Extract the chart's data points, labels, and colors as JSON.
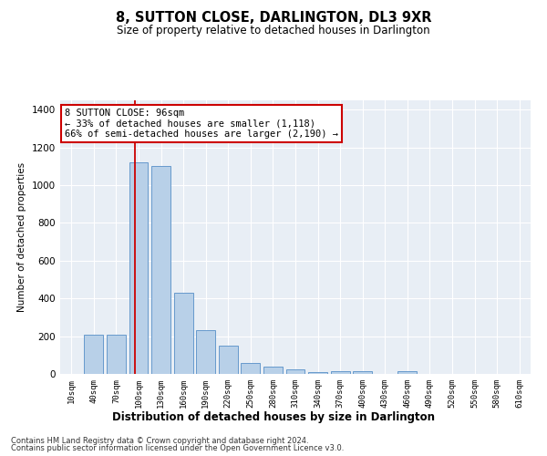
{
  "title": "8, SUTTON CLOSE, DARLINGTON, DL3 9XR",
  "subtitle": "Size of property relative to detached houses in Darlington",
  "xlabel": "Distribution of detached houses by size in Darlington",
  "ylabel": "Number of detached properties",
  "bar_color": "#b8d0e8",
  "bar_edge_color": "#6699cc",
  "background_color": "#e8eef5",
  "grid_color": "#ffffff",
  "categories": [
    "10sqm",
    "40sqm",
    "70sqm",
    "100sqm",
    "130sqm",
    "160sqm",
    "190sqm",
    "220sqm",
    "250sqm",
    "280sqm",
    "310sqm",
    "340sqm",
    "370sqm",
    "400sqm",
    "430sqm",
    "460sqm",
    "490sqm",
    "520sqm",
    "550sqm",
    "580sqm",
    "610sqm"
  ],
  "values": [
    0,
    210,
    210,
    1120,
    1100,
    430,
    230,
    150,
    60,
    40,
    25,
    10,
    15,
    15,
    0,
    15,
    0,
    0,
    0,
    0,
    0
  ],
  "red_line_x": 2.85,
  "annotation_text": "8 SUTTON CLOSE: 96sqm\n← 33% of detached houses are smaller (1,118)\n66% of semi-detached houses are larger (2,190) →",
  "annotation_box_color": "#ffffff",
  "annotation_border_color": "#cc0000",
  "ylim": [
    0,
    1450
  ],
  "yticks": [
    0,
    200,
    400,
    600,
    800,
    1000,
    1200,
    1400
  ],
  "footer_line1": "Contains HM Land Registry data © Crown copyright and database right 2024.",
  "footer_line2": "Contains public sector information licensed under the Open Government Licence v3.0.",
  "fig_width": 6.0,
  "fig_height": 5.0,
  "dpi": 100
}
